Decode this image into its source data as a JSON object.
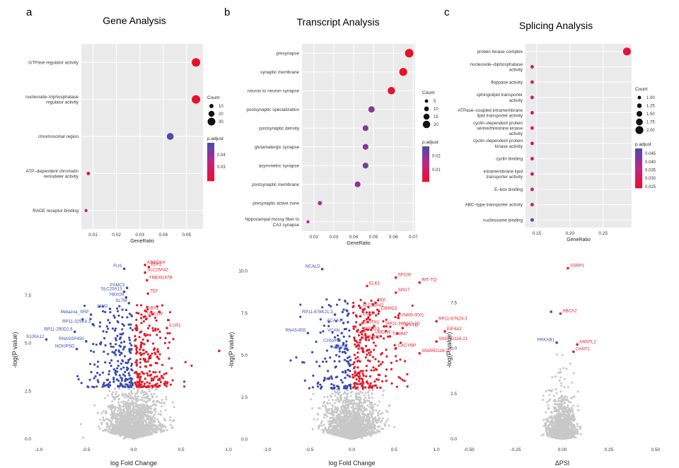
{
  "figure": {
    "panel_letters": [
      "a",
      "b",
      "c"
    ],
    "colors": {
      "up": "#e41a2a",
      "down": "#3b4cb0",
      "ns": "#c8c8c8",
      "padj_low": "#e8102a",
      "padj_mid": "#c0248a",
      "padj_high": "#4b4ba8",
      "panel_bg": "#ebebeb",
      "grid": "#ffffff"
    }
  },
  "chart_data": [
    {
      "type": "scatter",
      "subtype": "dotplot",
      "id": "a",
      "title": "Gene Analysis",
      "xlabel": "GeneRatio",
      "ylabel": "",
      "xlim": [
        0.005,
        0.057
      ],
      "xticks": [
        0.01,
        0.02,
        0.03,
        0.04,
        0.05
      ],
      "xtick_labels": [
        "0.01",
        "0.02",
        "0.03",
        "0.04",
        "0.05"
      ],
      "categories": [
        "GTPase regulator activity",
        "nucleoside–triphosphatase\nregulator activity",
        "chromosomal region",
        "ATP–dependent chromatin\nremodeler activity",
        "RAGE receptor binding"
      ],
      "x": [
        0.054,
        0.054,
        0.043,
        0.008,
        0.007
      ],
      "count": [
        34,
        34,
        25,
        6,
        4
      ],
      "p_adjust": [
        0.018,
        0.018,
        0.049,
        0.019,
        0.04
      ],
      "count_legend": {
        "title": "Count",
        "values": [
          10,
          20,
          30
        ],
        "labels": [
          "10",
          "20",
          "30"
        ],
        "range": [
          4,
          34
        ]
      },
      "padj_legend": {
        "title": "p.adjust",
        "ticks": [
          0.04,
          0.03
        ],
        "tick_labels": [
          "0.04",
          "0.03"
        ],
        "range": [
          0.018,
          0.05
        ]
      }
    },
    {
      "type": "scatter",
      "subtype": "dotplot",
      "id": "b",
      "title": "Transcript Analysis",
      "xlabel": "GeneRatio",
      "ylabel": "",
      "xlim": [
        0.014,
        0.071
      ],
      "xticks": [
        0.02,
        0.03,
        0.04,
        0.05,
        0.06,
        0.07
      ],
      "xtick_labels": [
        "0.02",
        "0.03",
        "0.04",
        "0.05",
        "0.06",
        "0.07"
      ],
      "categories": [
        "presynapse",
        "synaptic membrane",
        "neuron to neuron synapse",
        "postsynaptic specialization",
        "postsynaptic density",
        "glutamatergic synapse",
        "asymmetric synapse",
        "postsynaptic membrane",
        "presynaptic active zone",
        "hippocampal mossy fiber to\nCA3 synapse"
      ],
      "x": [
        0.068,
        0.065,
        0.059,
        0.049,
        0.046,
        0.046,
        0.046,
        0.042,
        0.023,
        0.017
      ],
      "count": [
        24,
        22,
        20,
        16,
        14,
        14,
        14,
        14,
        8,
        4
      ],
      "p_adjust": [
        0.001,
        0.001,
        0.002,
        0.02,
        0.021,
        0.021,
        0.022,
        0.02,
        0.013,
        0.014
      ],
      "count_legend": {
        "title": "Count",
        "values": [
          5,
          10,
          15,
          20
        ],
        "labels": [
          "5",
          "10",
          "15",
          "20"
        ],
        "range": [
          4,
          24
        ]
      },
      "padj_legend": {
        "title": "p.adjust",
        "ticks": [
          0.02,
          0.01
        ],
        "tick_labels": [
          "0.02",
          "0.01"
        ],
        "range": [
          0.001,
          0.027
        ]
      }
    },
    {
      "type": "scatter",
      "subtype": "dotplot",
      "id": "c",
      "title": "Splicing Analysis",
      "xlabel": "GeneRatio",
      "ylabel": "",
      "xlim": [
        0.133,
        0.293
      ],
      "xticks": [
        0.15,
        0.2,
        0.25
      ],
      "xtick_labels": [
        "0.15",
        "0.20",
        "0.25"
      ],
      "categories": [
        "protein kinase complex",
        "nucleoside–diphosphatase\nactivity",
        "floppase activity",
        "sphingolipid transporter\nactivity",
        "ATPase–coupled intramembrane\nlipid transporter activity",
        "cyclin–dependent protein\nserine/threonine kinase\nactivity",
        "cyclin–dependent protein\nkinase activity",
        "cyclin binding",
        "intramembrane lipid\ntransporter activity",
        "E–box binding",
        "ABC–type transporter activity",
        "nucleosome binding"
      ],
      "x": [
        0.286,
        0.143,
        0.143,
        0.143,
        0.143,
        0.143,
        0.143,
        0.143,
        0.143,
        0.143,
        0.143,
        0.143
      ],
      "count": [
        2,
        1,
        1,
        1,
        1,
        1,
        1,
        1,
        1,
        1,
        1,
        1
      ],
      "p_adjust": [
        0.026,
        0.032,
        0.032,
        0.032,
        0.032,
        0.032,
        0.032,
        0.032,
        0.032,
        0.032,
        0.032,
        0.047
      ],
      "count_legend": {
        "title": "Count",
        "values": [
          1,
          1.25,
          1.5,
          1.75,
          2
        ],
        "labels": [
          "1.00",
          "1.25",
          "1.50",
          "1.75",
          "2.00"
        ],
        "range": [
          1,
          2
        ]
      },
      "padj_legend": {
        "title": "p.adjust",
        "ticks": [
          0.045,
          0.04,
          0.035,
          0.03,
          0.025
        ],
        "tick_labels": [
          "0.045",
          "0.040",
          "0.035",
          "0.030",
          "0.025"
        ],
        "range": [
          0.024,
          0.048
        ]
      }
    },
    {
      "type": "scatter",
      "subtype": "volcano",
      "id": "gene-volcano",
      "xlabel": "log Fold Change",
      "ylabel": "-log(P value)",
      "xlim": [
        -1.05,
        1.05
      ],
      "ylim": [
        -0.2,
        9.5
      ],
      "xticks": [
        -1,
        -0.5,
        0,
        0.5,
        1
      ],
      "xtick_labels": [
        "-1.0",
        "-0.5",
        "0.0",
        "0.5",
        "1.0"
      ],
      "yticks": [
        0,
        2.5,
        5,
        7.5
      ],
      "ytick_labels": [
        "0.0",
        "2.5",
        "5.0",
        "7.5"
      ],
      "threshold_y": 2.7,
      "cloud": {
        "ns_count": 1500,
        "sig_up_count": 230,
        "sig_down_count": 210,
        "x_spread": 0.25,
        "y_decay": 1.4
      },
      "labeled": [
        {
          "label": "KRBOX4",
          "x": 0.12,
          "y": 9.1,
          "dir": "up"
        },
        {
          "label": "ELK1",
          "x": 0.16,
          "y": 9.0,
          "dir": "up"
        },
        {
          "label": "FUS",
          "x": -0.1,
          "y": 8.9,
          "dir": "down"
        },
        {
          "label": "SLC25A42",
          "x": 0.12,
          "y": 8.7,
          "dir": "up"
        },
        {
          "label": "TMEM167B",
          "x": 0.14,
          "y": 8.3,
          "dir": "up"
        },
        {
          "label": "PSMC5",
          "x": -0.07,
          "y": 7.9,
          "dir": "down"
        },
        {
          "label": "SLC25A13",
          "x": -0.1,
          "y": 7.7,
          "dir": "down"
        },
        {
          "label": "TEF",
          "x": 0.15,
          "y": 7.6,
          "dir": "up"
        },
        {
          "label": "FBXO9",
          "x": -0.08,
          "y": 7.4,
          "dir": "down"
        },
        {
          "label": "SLTM",
          "x": -0.05,
          "y": 7.1,
          "dir": "down"
        },
        {
          "label": "JAM2",
          "x": -0.25,
          "y": 6.8,
          "dir": "down"
        },
        {
          "label": "CBX1",
          "x": 0.12,
          "y": 6.7,
          "dir": "up"
        },
        {
          "label": "Metazoa_SRP",
          "x": -0.45,
          "y": 6.5,
          "dir": "down"
        },
        {
          "label": "UBE2W",
          "x": 0.12,
          "y": 6.4,
          "dir": "up"
        },
        {
          "label": "IL1R1",
          "x": 0.35,
          "y": 5.8,
          "dir": "up"
        },
        {
          "label": "RP11-325K4.3",
          "x": -0.43,
          "y": 6.0,
          "dir": "down"
        },
        {
          "label": "RP11-290D2.6",
          "x": -0.62,
          "y": 5.6,
          "dir": "down"
        },
        {
          "label": "S100A12",
          "x": -0.92,
          "y": 5.2,
          "dir": "down"
        },
        {
          "label": "RNASSP450",
          "x": -0.5,
          "y": 5.1,
          "dir": "down"
        },
        {
          "label": "NCKIPSD",
          "x": -0.6,
          "y": 4.7,
          "dir": "down"
        },
        {
          "label": "",
          "x": 0.9,
          "y": 4.6,
          "dir": "up"
        }
      ]
    },
    {
      "type": "scatter",
      "subtype": "volcano",
      "id": "transcript-volcano",
      "xlabel": "log Fold Change",
      "ylabel": "-log(P value)",
      "xlim": [
        -1.2,
        1.2
      ],
      "ylim": [
        -0.2,
        10.8
      ],
      "xticks": [
        -1,
        -0.5,
        0,
        0.5,
        1
      ],
      "xtick_labels": [
        "-1.0",
        "-0.5",
        "0.0",
        "0.5",
        "1.0"
      ],
      "yticks": [
        0,
        2.5,
        5,
        7.5,
        10
      ],
      "ytick_labels": [
        "0.0",
        "2.5",
        "5.0",
        "7.5",
        "10.0"
      ],
      "threshold_y": 3.0,
      "cloud": {
        "ns_count": 1500,
        "sig_up_count": 230,
        "sig_down_count": 140,
        "x_spread": 0.28,
        "y_decay": 1.5
      },
      "labeled": [
        {
          "label": "NCALD",
          "x": -0.35,
          "y": 10.1,
          "dir": "down"
        },
        {
          "label": "SP100",
          "x": 0.52,
          "y": 9.6,
          "dir": "up"
        },
        {
          "label": "IMT-TQ",
          "x": 0.8,
          "y": 9.3,
          "dir": "up"
        },
        {
          "label": "ELK1",
          "x": 0.18,
          "y": 9.1,
          "dir": "up"
        },
        {
          "label": "SPG7",
          "x": 0.52,
          "y": 8.7,
          "dir": "up"
        },
        {
          "label": "TEF",
          "x": 0.28,
          "y": 8.1,
          "dir": "up"
        },
        {
          "label": "SLC26A42",
          "x": 0.1,
          "y": 7.8,
          "dir": "up"
        },
        {
          "label": "CBWD3",
          "x": 0.32,
          "y": 7.6,
          "dir": "up"
        },
        {
          "label": "RP11-678K21.3",
          "x": -0.2,
          "y": 7.4,
          "dir": "down"
        },
        {
          "label": "ZZZ3",
          "x": 0.1,
          "y": 7.3,
          "dir": "up"
        },
        {
          "label": "UNKR-0001",
          "x": 0.55,
          "y": 7.2,
          "dir": "up"
        },
        {
          "label": "RP11-87N24.3",
          "x": 1.0,
          "y": 7.0,
          "dir": "up"
        },
        {
          "label": "ACAA1",
          "x": -0.1,
          "y": 6.9,
          "dir": "down"
        },
        {
          "label": "CLSTN1",
          "x": 0.1,
          "y": 6.8,
          "dir": "up"
        },
        {
          "label": "RP11-386G11.10",
          "x": 0.38,
          "y": 6.7,
          "dir": "up"
        },
        {
          "label": "MT-TD",
          "x": 0.6,
          "y": 6.6,
          "dir": "up"
        },
        {
          "label": "EIF4A2",
          "x": 1.1,
          "y": 6.4,
          "dir": "up"
        },
        {
          "label": "PRRG3",
          "x": 0.12,
          "y": 6.4,
          "dir": "up"
        },
        {
          "label": "RNA5-855",
          "x": -0.52,
          "y": 6.3,
          "dir": "down"
        },
        {
          "label": "VCAN",
          "x": -0.12,
          "y": 6.3,
          "dir": "down"
        },
        {
          "label": "UBE2W",
          "x": 0.25,
          "y": 6.2,
          "dir": "up"
        },
        {
          "label": "TOMM7",
          "x": 0.45,
          "y": 6.1,
          "dir": "up"
        },
        {
          "label": "TMEM42",
          "x": 0.1,
          "y": 5.9,
          "dir": "up"
        },
        {
          "label": "SNORD116-21",
          "x": 1.0,
          "y": 5.8,
          "dir": "up"
        },
        {
          "label": "C16orf45",
          "x": -0.1,
          "y": 5.7,
          "dir": "down"
        },
        {
          "label": "CACYBP",
          "x": 0.52,
          "y": 5.4,
          "dir": "up"
        },
        {
          "label": "ACAP3",
          "x": -0.05,
          "y": 5.3,
          "dir": "down"
        },
        {
          "label": "SNORD116-20",
          "x": 0.8,
          "y": 5.1,
          "dir": "up"
        }
      ]
    },
    {
      "type": "scatter",
      "subtype": "volcano",
      "id": "splicing-volcano",
      "xlabel": "ΔPSI",
      "ylabel": "-log(P value)",
      "xlim": [
        -0.55,
        0.55
      ],
      "ylim": [
        -0.2,
        10.0
      ],
      "xticks": [
        -0.5,
        -0.25,
        0,
        0.25,
        0.5
      ],
      "xtick_labels": [
        "-0.50",
        "-0.25",
        "0.00",
        "0.25",
        "0.50"
      ],
      "yticks": [
        0,
        2.5,
        5,
        7.5
      ],
      "ytick_labels": [
        "0.0",
        "2.5",
        "5.0",
        "7.5"
      ],
      "threshold_y": null,
      "cloud": {
        "ns_count": 1300,
        "sig_up_count": 0,
        "sig_down_count": 0,
        "x_spread": 0.06,
        "y_decay": 1.1
      },
      "labeled": [
        {
          "label": "SSRP1",
          "x": 0.03,
          "y": 9.4,
          "dir": "up"
        },
        {
          "label": "",
          "x": -0.06,
          "y": 7.0,
          "dir": "down"
        },
        {
          "label": "ABCA2",
          "x": -0.01,
          "y": 6.9,
          "dir": "up"
        },
        {
          "label": "PRKAB1",
          "x": -0.03,
          "y": 5.3,
          "dir": "down"
        },
        {
          "label": "ARNTL2",
          "x": 0.08,
          "y": 5.2,
          "dir": "up"
        },
        {
          "label": "CANT1",
          "x": 0.06,
          "y": 4.8,
          "dir": "up"
        }
      ]
    }
  ]
}
